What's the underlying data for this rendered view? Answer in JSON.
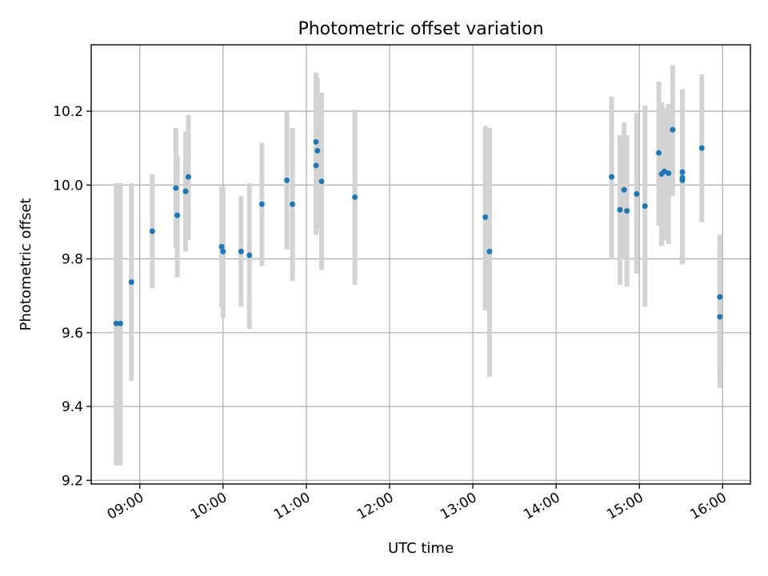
{
  "chart_data": {
    "type": "scatter",
    "title": "Photometric offset variation",
    "xlabel": "UTC time",
    "ylabel": "Photometric offset",
    "xlim": [
      "08:25",
      "16:20"
    ],
    "ylim": [
      9.19,
      10.38
    ],
    "xticks": [
      "09:00",
      "10:00",
      "11:00",
      "12:00",
      "13:00",
      "14:00",
      "15:00",
      "16:00"
    ],
    "yticks": [
      "9.2",
      "9.4",
      "9.6",
      "9.8",
      "10.0",
      "10.2"
    ],
    "grid": true,
    "colors": {
      "point": "#1f77b4",
      "errorbar": "#d3d3d3"
    },
    "points": [
      {
        "x": "08:43",
        "y": 9.625,
        "ymin": 9.24,
        "ymax": 10.005
      },
      {
        "x": "08:46",
        "y": 9.625,
        "ymin": 9.24,
        "ymax": 10.005
      },
      {
        "x": "08:54",
        "y": 9.737,
        "ymin": 9.47,
        "ymax": 10.005
      },
      {
        "x": "09:09",
        "y": 9.875,
        "ymin": 9.72,
        "ymax": 10.03
      },
      {
        "x": "09:26",
        "y": 9.992,
        "ymin": 9.83,
        "ymax": 10.155
      },
      {
        "x": "09:27",
        "y": 9.918,
        "ymin": 9.75,
        "ymax": 10.08
      },
      {
        "x": "09:33",
        "y": 9.983,
        "ymin": 9.82,
        "ymax": 10.145
      },
      {
        "x": "09:35",
        "y": 10.022,
        "ymin": 9.85,
        "ymax": 10.19
      },
      {
        "x": "09:59",
        "y": 9.833,
        "ymin": 9.67,
        "ymax": 9.995
      },
      {
        "x": "10:00",
        "y": 9.82,
        "ymin": 9.64,
        "ymax": 9.995
      },
      {
        "x": "10:13",
        "y": 9.82,
        "ymin": 9.67,
        "ymax": 9.97
      },
      {
        "x": "10:19",
        "y": 9.81,
        "ymin": 9.61,
        "ymax": 10.005
      },
      {
        "x": "10:28",
        "y": 9.948,
        "ymin": 9.78,
        "ymax": 10.115
      },
      {
        "x": "10:46",
        "y": 10.013,
        "ymin": 9.825,
        "ymax": 10.2
      },
      {
        "x": "10:50",
        "y": 9.948,
        "ymin": 9.74,
        "ymax": 10.155
      },
      {
        "x": "11:07",
        "y": 10.117,
        "ymin": 9.98,
        "ymax": 10.305
      },
      {
        "x": "11:08",
        "y": 10.093,
        "ymin": 9.88,
        "ymax": 10.29
      },
      {
        "x": "11:07",
        "y": 10.053,
        "ymin": 9.865,
        "ymax": 10.24
      },
      {
        "x": "11:11",
        "y": 10.01,
        "ymin": 9.77,
        "ymax": 10.25
      },
      {
        "x": "11:35",
        "y": 9.967,
        "ymin": 9.73,
        "ymax": 10.205
      },
      {
        "x": "13:09",
        "y": 9.913,
        "ymin": 9.66,
        "ymax": 10.16
      },
      {
        "x": "13:12",
        "y": 9.82,
        "ymin": 9.48,
        "ymax": 10.155
      },
      {
        "x": "14:40",
        "y": 10.022,
        "ymin": 9.8,
        "ymax": 10.24
      },
      {
        "x": "14:46",
        "y": 9.933,
        "ymin": 9.73,
        "ymax": 10.135
      },
      {
        "x": "14:49",
        "y": 9.987,
        "ymin": 9.8,
        "ymax": 10.17
      },
      {
        "x": "14:51",
        "y": 9.93,
        "ymin": 9.725,
        "ymax": 10.135
      },
      {
        "x": "14:58",
        "y": 9.976,
        "ymin": 9.76,
        "ymax": 10.195
      },
      {
        "x": "15:04",
        "y": 9.943,
        "ymin": 9.67,
        "ymax": 10.215
      },
      {
        "x": "15:14",
        "y": 10.087,
        "ymin": 9.89,
        "ymax": 10.28
      },
      {
        "x": "15:16",
        "y": 10.03,
        "ymin": 9.835,
        "ymax": 10.225
      },
      {
        "x": "15:18",
        "y": 10.037,
        "ymin": 9.85,
        "ymax": 10.21
      },
      {
        "x": "15:21",
        "y": 10.032,
        "ymin": 9.84,
        "ymax": 10.22
      },
      {
        "x": "15:24",
        "y": 10.15,
        "ymin": 9.97,
        "ymax": 10.325
      },
      {
        "x": "15:31",
        "y": 10.035,
        "ymin": 9.81,
        "ymax": 10.26
      },
      {
        "x": "15:31",
        "y": 10.013,
        "ymin": 9.785,
        "ymax": 10.25
      },
      {
        "x": "15:31",
        "y": 10.02,
        "ymin": 9.79,
        "ymax": 10.245
      },
      {
        "x": "15:45",
        "y": 10.1,
        "ymin": 9.9,
        "ymax": 10.3
      },
      {
        "x": "15:58",
        "y": 9.697,
        "ymin": 9.5,
        "ymax": 9.865
      },
      {
        "x": "15:58",
        "y": 9.643,
        "ymin": 9.45,
        "ymax": 9.84
      }
    ]
  }
}
